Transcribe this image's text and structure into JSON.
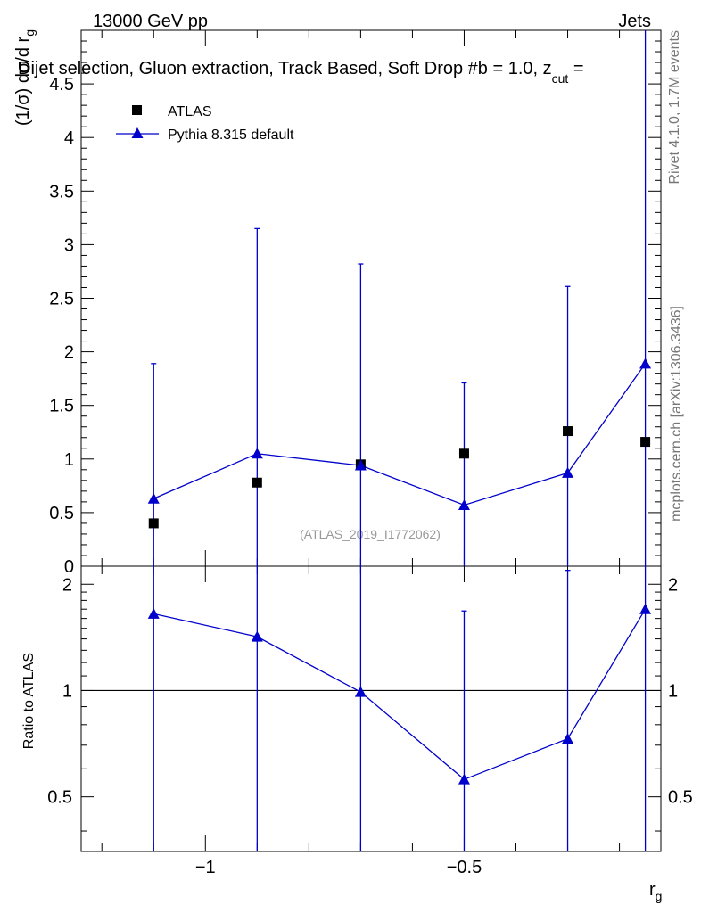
{
  "header": {
    "energy_label": "13000 GeV pp",
    "process_label": "Jets",
    "selection_title": "Dijet selection, Gluon extraction, Track Based, Soft Drop #b = 1.0, z",
    "selection_sub": "cut",
    "selection_tail": " ="
  },
  "side_labels": {
    "rivet": "Rivet 4.1.0,  1.7M events",
    "mcplots": "mcplots.cern.ch [arXiv:1306.3436]"
  },
  "watermark": "(ATLAS_2019_I1772062)",
  "legend": {
    "data_label": "ATLAS",
    "mc_label": "Pythia 8.315 default"
  },
  "colors": {
    "data": "#000000",
    "mc": "#0000cc",
    "axis": "#000000"
  },
  "chart_data": [
    {
      "type": "scatter",
      "panel": "main",
      "ylabel": "(1/σ) dσ/d r",
      "ylabel_sub": "g",
      "xlim": [
        -1.24,
        -0.12
      ],
      "ylim": [
        0,
        5.0
      ],
      "yticks": [
        0,
        0.5,
        1,
        1.5,
        2,
        2.5,
        3,
        3.5,
        4,
        4.5
      ],
      "ytick_labels": [
        "0",
        "0.5",
        "1",
        "1.5",
        "2",
        "2.5",
        "3",
        "3.5",
        "4",
        "4.5"
      ],
      "series": [
        {
          "name": "ATLAS",
          "marker": "square",
          "x": [
            -1.1,
            -0.9,
            -0.7,
            -0.5,
            -0.3,
            -0.15
          ],
          "y": [
            0.4,
            0.78,
            0.95,
            1.05,
            1.26,
            1.16
          ]
        },
        {
          "name": "Pythia 8.315 default",
          "marker": "triangle",
          "x": [
            -1.1,
            -0.9,
            -0.7,
            -0.5,
            -0.3,
            -0.15
          ],
          "y": [
            0.63,
            1.05,
            0.94,
            0.57,
            0.87,
            1.89
          ],
          "yerr_low": [
            0.63,
            1.05,
            0.94,
            0.57,
            0.87,
            1.89
          ],
          "yerr_high": [
            1.26,
            2.1,
            1.88,
            1.14,
            1.74,
            3.79
          ]
        }
      ]
    },
    {
      "type": "line",
      "panel": "ratio",
      "xlabel": "r",
      "xlabel_sub": "g",
      "ylabel": "Ratio to ATLAS",
      "xlim": [
        -1.24,
        -0.12
      ],
      "ylim": [
        0.35,
        2.25
      ],
      "log_y": true,
      "xticks": [
        -1,
        -0.5
      ],
      "xtick_labels": [
        "−1",
        "−0.5"
      ],
      "yticks": [
        0.5,
        1,
        2
      ],
      "ytick_labels": [
        "0.5",
        "1",
        "2"
      ],
      "reference_line": 1,
      "series": [
        {
          "name": "Pythia 8.315 default",
          "x": [
            -1.1,
            -0.9,
            -0.7,
            -0.5,
            -0.3,
            -0.15
          ],
          "y": [
            1.65,
            1.42,
            0.99,
            0.56,
            0.73,
            1.7
          ],
          "yerr_low": [
            1.65,
            1.42,
            0.99,
            0.56,
            0.73,
            1.7
          ],
          "yerr_high": [
            3.3,
            2.84,
            1.98,
            1.12,
            1.46,
            3.4
          ]
        }
      ]
    }
  ]
}
